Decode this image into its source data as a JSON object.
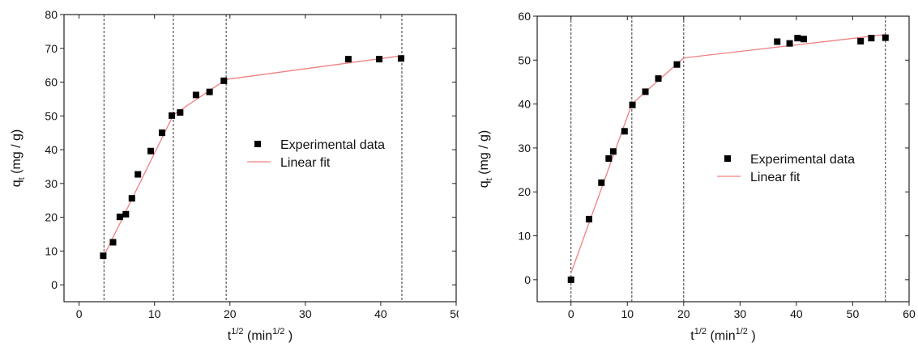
{
  "chart_data": [
    {
      "type": "scatter",
      "xlabel_base": "t",
      "xlabel_sup": "1/2",
      "xlabel_rest": " (min",
      "xlabel_sup2": "1/2",
      "xlabel_end": " )",
      "ylabel_base": "q",
      "ylabel_sub": "t",
      "ylabel_rest": " (mg / g)",
      "xlim": [
        -2,
        50
      ],
      "ylim": [
        -5,
        80
      ],
      "xticks": [
        0,
        10,
        20,
        30,
        40,
        50
      ],
      "yticks": [
        0,
        10,
        20,
        30,
        40,
        50,
        60,
        70,
        80
      ],
      "grid": false,
      "legend_position": "center-right",
      "dashed_vlines": [
        3.3,
        12.5,
        19.5,
        42.8
      ],
      "series": [
        {
          "name": "Experimental data",
          "marker": "square",
          "color": "#000000",
          "x": [
            3.2,
            4.5,
            5.4,
            6.2,
            7.0,
            7.8,
            9.5,
            11.0,
            12.3,
            13.4,
            15.5,
            17.3,
            19.2,
            35.7,
            39.8,
            42.7
          ],
          "y": [
            8.6,
            12.6,
            20.1,
            20.9,
            25.6,
            32.7,
            39.6,
            45.0,
            50.1,
            51.0,
            56.2,
            57.1,
            60.4,
            66.8,
            66.8,
            67.0
          ]
        },
        {
          "name": "Linear fit",
          "type": "line",
          "color": "#f08080",
          "segments": [
            [
              [
                3.3,
                8.6
              ],
              [
                12.5,
                50.3
              ]
            ],
            [
              [
                12.5,
                50.3
              ],
              [
                19.5,
                60.8
              ]
            ],
            [
              [
                19.5,
                60.8
              ],
              [
                42.8,
                67.8
              ]
            ]
          ]
        }
      ]
    },
    {
      "type": "scatter",
      "xlabel_base": "t",
      "xlabel_sup": "1/2",
      "xlabel_rest": " (min",
      "xlabel_sup2": "1/2",
      "xlabel_end": " )",
      "ylabel_base": "q",
      "ylabel_sub": "t",
      "ylabel_rest": " (mg / g)",
      "xlim": [
        -6,
        60
      ],
      "ylim": [
        -5,
        60
      ],
      "xticks": [
        0,
        10,
        20,
        30,
        40,
        50,
        60
      ],
      "yticks": [
        0,
        10,
        20,
        30,
        40,
        50,
        60
      ],
      "grid": false,
      "legend_position": "center-right",
      "dashed_vlines": [
        0,
        10.8,
        20,
        55.8
      ],
      "series": [
        {
          "name": "Experimental data",
          "marker": "square",
          "color": "#000000",
          "x": [
            0,
            3.2,
            5.4,
            6.7,
            7.5,
            9.5,
            10.9,
            13.2,
            15.5,
            18.8,
            36.6,
            38.8,
            40.2,
            41.3,
            51.4,
            53.3,
            55.8
          ],
          "y": [
            0,
            13.8,
            22.1,
            27.6,
            29.2,
            33.8,
            39.8,
            42.8,
            45.8,
            49.0,
            54.2,
            53.8,
            55.0,
            54.8,
            54.3,
            55.0,
            55.1
          ]
        },
        {
          "name": "Linear fit",
          "type": "line",
          "color": "#f08080",
          "segments": [
            [
              [
                0,
                1.5
              ],
              [
                10.8,
                40.0
              ]
            ],
            [
              [
                10.8,
                40.0
              ],
              [
                20,
                50.5
              ]
            ],
            [
              [
                20,
                50.5
              ],
              [
                55.8,
                55.8
              ]
            ]
          ]
        }
      ]
    }
  ]
}
